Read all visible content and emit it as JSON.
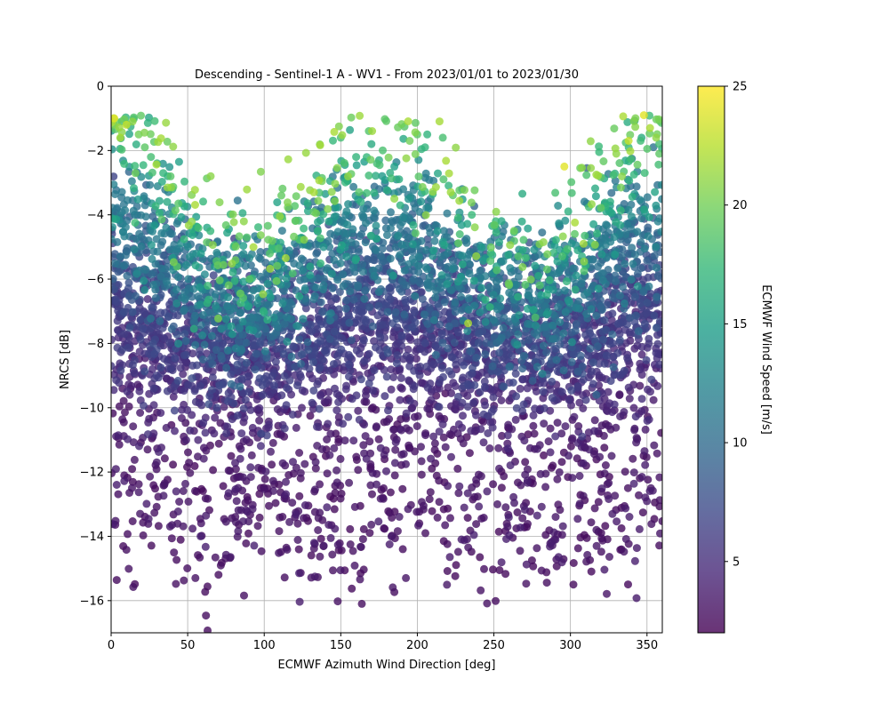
{
  "chart_data": {
    "type": "scatter",
    "title": "Descending - Sentinel-1 A - WV1 - From 2023/01/01 to 2023/01/30",
    "xlabel": "ECMWF Azimuth Wind Direction [deg]",
    "ylabel": "NRCS [dB]",
    "xlim": [
      0,
      360
    ],
    "ylim": [
      -17,
      0
    ],
    "xticks": [
      0,
      50,
      100,
      150,
      200,
      250,
      300,
      350
    ],
    "yticks": [
      0,
      -2,
      -4,
      -6,
      -8,
      -10,
      -12,
      -14,
      -16
    ],
    "xtick_labels": [
      "0",
      "50",
      "100",
      "150",
      "200",
      "250",
      "300",
      "350"
    ],
    "ytick_labels": [
      "0",
      "−2",
      "−4",
      "−6",
      "−8",
      "−10",
      "−12",
      "−14",
      "−16"
    ],
    "grid": true,
    "marker_alpha": 0.8,
    "colorbar": {
      "label": "ECMWF Wind Speed [m/s]",
      "range": [
        2,
        25
      ],
      "ticks": [
        5,
        10,
        15,
        20,
        25
      ],
      "tick_labels": [
        "5",
        "10",
        "15",
        "20",
        "25"
      ],
      "colormap": "viridis",
      "colors": [
        "#440154",
        "#482878",
        "#3e4989",
        "#31688e",
        "#26828e",
        "#1f9e89",
        "#35b779",
        "#6ece58",
        "#b5de2b",
        "#fde725"
      ]
    },
    "series": [
      {
        "x": [
          2,
          6,
          10,
          14,
          18,
          22,
          26,
          30,
          34,
          40,
          348,
          352,
          356,
          358,
          338,
          330,
          150,
          160,
          170,
          175,
          185,
          195,
          200,
          205,
          296,
          185
        ],
        "y": [
          -1.0,
          -1.6,
          -1.2,
          -1.1,
          -1.5,
          -1.9,
          -2.2,
          -2.4,
          -2.7,
          -3.2,
          -0.9,
          -1.3,
          -1.6,
          -2.1,
          -1.7,
          -2.1,
          -1.6,
          -2.2,
          -1.8,
          -2.3,
          -2.5,
          -1.7,
          -1.5,
          -1.9,
          -2.5,
          -3.5
        ],
        "wind_speed": [
          24,
          22,
          23,
          21,
          20,
          19,
          18,
          17,
          17,
          16,
          24,
          22,
          21,
          19,
          23,
          21,
          18,
          17,
          16,
          16,
          15,
          20,
          19,
          17,
          24,
          21
        ]
      }
    ]
  }
}
